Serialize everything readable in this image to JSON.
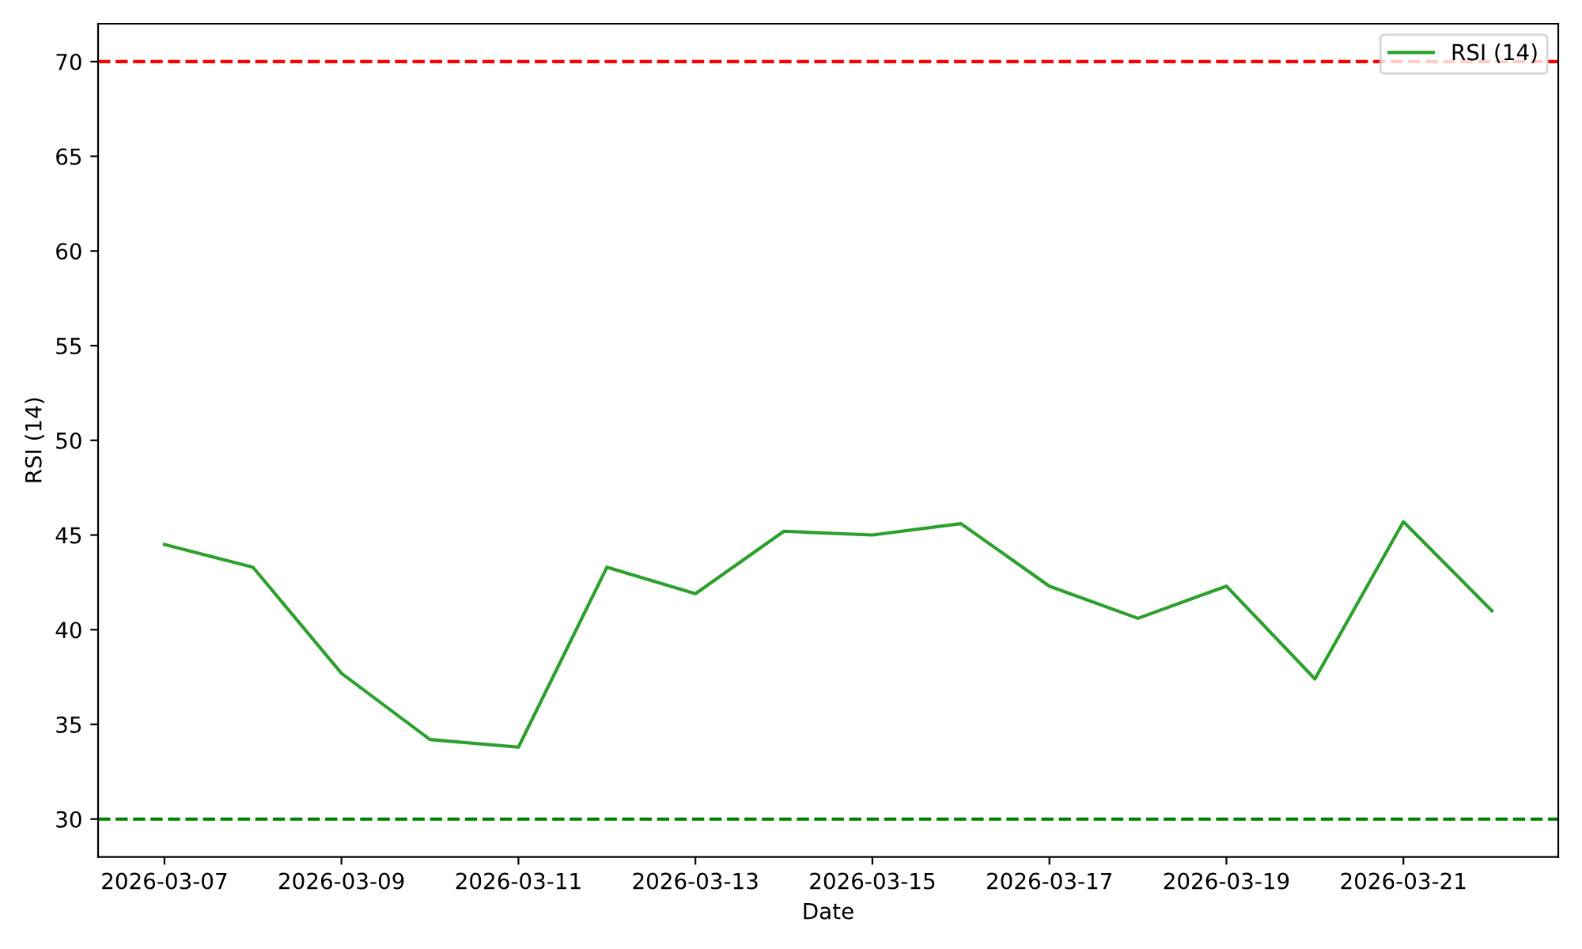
{
  "chart_data": {
    "type": "line",
    "xlabel": "Date",
    "ylabel": "RSI (14)",
    "x": [
      "2026-03-07",
      "2026-03-08",
      "2026-03-09",
      "2026-03-10",
      "2026-03-11",
      "2026-03-12",
      "2026-03-13",
      "2026-03-14",
      "2026-03-15",
      "2026-03-16",
      "2026-03-17",
      "2026-03-18",
      "2026-03-19",
      "2026-03-20",
      "2026-03-21",
      "2026-03-22"
    ],
    "series": [
      {
        "name": "RSI (14)",
        "color": "#2ca02c",
        "values": [
          44.5,
          43.3,
          37.7,
          34.2,
          33.8,
          43.3,
          41.9,
          45.2,
          45.0,
          45.6,
          42.3,
          40.6,
          42.3,
          37.4,
          45.7,
          41.0
        ]
      }
    ],
    "ref_lines": [
      {
        "axis": "y",
        "value": 70,
        "color": "#ff0000",
        "line_style": "dashed"
      },
      {
        "axis": "y",
        "value": 30,
        "color": "#008000",
        "line_style": "dashed"
      }
    ],
    "xlim": [
      "2026-03-06T06:00",
      "2026-03-22T18:00"
    ],
    "xticks": [
      "2026-03-07",
      "2026-03-09",
      "2026-03-11",
      "2026-03-13",
      "2026-03-15",
      "2026-03-17",
      "2026-03-19",
      "2026-03-21"
    ],
    "ylim": [
      28,
      72
    ],
    "yticks": [
      30,
      35,
      40,
      45,
      50,
      55,
      60,
      65,
      70
    ],
    "grid": false,
    "legend": "top right",
    "marker": "none",
    "line_style": "solid"
  }
}
